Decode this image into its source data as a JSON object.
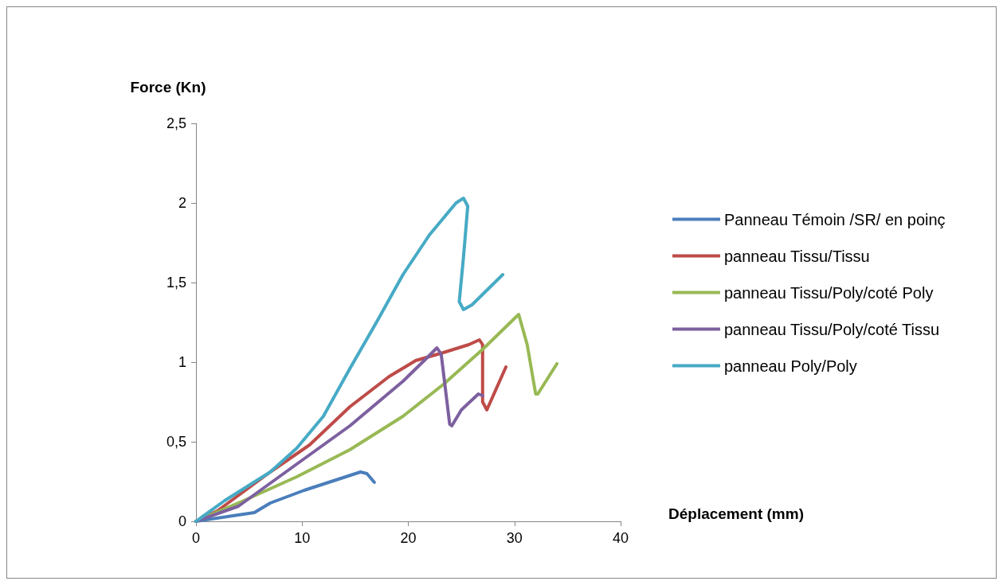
{
  "chart_data": {
    "type": "line",
    "xlabel": "Déplacement (mm)",
    "ylabel": "Force (Kn)",
    "xlim": [
      0,
      40
    ],
    "xticks": [
      0,
      10,
      20,
      30,
      40
    ],
    "ylim": [
      0,
      2.5
    ],
    "yticks": [
      0,
      {
        "value": 0.5,
        "label": "0,5"
      },
      1,
      {
        "value": 1.5,
        "label": "1,5"
      },
      2,
      {
        "value": 2.5,
        "label": "2,5"
      }
    ],
    "grid": false,
    "legend": "right",
    "marker": "none",
    "line_style": "solid",
    "series": [
      {
        "name": "Panneau Témoin /SR/ en poinç",
        "color": "#4a7ebb",
        "x": [
          0,
          5.5,
          7,
          10.2,
          15.5,
          16.1,
          16.8
        ],
        "values": [
          0,
          0.055,
          0.115,
          0.195,
          0.31,
          0.3,
          0.245
        ]
      },
      {
        "name": "panneau Tissu/Tissu",
        "color": "#be4b48",
        "x": [
          0,
          2,
          7,
          10.7,
          14.5,
          18.2,
          20.7,
          23.3,
          25.7,
          26.7,
          27,
          27,
          27.4,
          29.2
        ],
        "values": [
          0,
          0.065,
          0.31,
          0.48,
          0.72,
          0.91,
          1.01,
          1.06,
          1.11,
          1.14,
          1.11,
          0.75,
          0.7,
          0.97
        ]
      },
      {
        "name": "panneau Tissu/Poly/coté Poly",
        "color": "#98b954",
        "x": [
          0,
          4.5,
          9.5,
          14.5,
          19.5,
          23.3,
          27,
          30.4,
          31.2,
          32,
          32.2,
          34
        ],
        "values": [
          0,
          0.13,
          0.28,
          0.45,
          0.66,
          0.86,
          1.08,
          1.3,
          1.11,
          0.8,
          0.8,
          0.99
        ]
      },
      {
        "name": "panneau Tissu/Poly/coté Tissu",
        "color": "#7d60a0",
        "x": [
          0,
          4,
          9.5,
          14.5,
          19.5,
          21.5,
          22.7,
          23.1,
          23.9,
          24.1,
          25,
          26.6,
          27
        ],
        "values": [
          0,
          0.095,
          0.36,
          0.6,
          0.88,
          1.01,
          1.09,
          1.05,
          0.61,
          0.6,
          0.7,
          0.8,
          0.79
        ]
      },
      {
        "name": "panneau Poly/Poly",
        "color": "#46aac5",
        "x": [
          0,
          2.7,
          7,
          9.5,
          12,
          14.5,
          17,
          19.5,
          22,
          24.5,
          25.2,
          25.6,
          25.2,
          24.8,
          25.2,
          26,
          28.9
        ],
        "values": [
          0,
          0.13,
          0.31,
          0.46,
          0.66,
          0.96,
          1.25,
          1.55,
          1.8,
          2,
          2.03,
          1.98,
          1.66,
          1.38,
          1.33,
          1.36,
          1.55
        ]
      }
    ]
  }
}
